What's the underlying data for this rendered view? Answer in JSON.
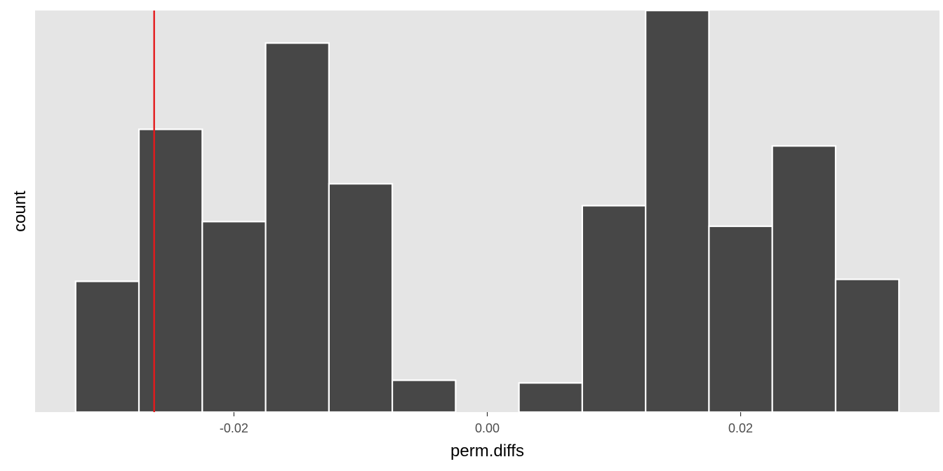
{
  "chart_data": {
    "type": "bar",
    "subtype": "histogram",
    "title": "",
    "xlabel": "perm.diffs",
    "ylabel": "count",
    "bins": [
      {
        "x0": -0.0325,
        "x1": -0.0275,
        "count": 19.7
      },
      {
        "x0": -0.0275,
        "x1": -0.0225,
        "count": 42.6
      },
      {
        "x0": -0.0225,
        "x1": -0.0175,
        "count": 28.7
      },
      {
        "x0": -0.0175,
        "x1": -0.0125,
        "count": 55.6
      },
      {
        "x0": -0.0125,
        "x1": -0.0075,
        "count": 34.4
      },
      {
        "x0": -0.0075,
        "x1": -0.0025,
        "count": 4.8
      },
      {
        "x0": -0.0025,
        "x1": 0.0025,
        "count": 0
      },
      {
        "x0": 0.0025,
        "x1": 0.0075,
        "count": 4.4
      },
      {
        "x0": 0.0075,
        "x1": 0.0125,
        "count": 31.1
      },
      {
        "x0": 0.0125,
        "x1": 0.0175,
        "count": 60.5
      },
      {
        "x0": 0.0175,
        "x1": 0.0225,
        "count": 28.0
      },
      {
        "x0": 0.0225,
        "x1": 0.0275,
        "count": 40.1
      },
      {
        "x0": 0.0275,
        "x1": 0.0325,
        "count": 20.0
      }
    ],
    "xlim": [
      -0.0357,
      0.0357
    ],
    "ylim": [
      0,
      60.5
    ],
    "x_ticks": [
      -0.02,
      0.0,
      0.02
    ],
    "x_tick_labels": [
      "-0.02",
      "0.00",
      "0.02"
    ],
    "y_tick_labels": [],
    "reference_line": {
      "x": -0.0263,
      "color": "#e41a1c"
    },
    "colors": {
      "panel_background": "#e5e5e5",
      "bar_fill": "#474747",
      "bar_outline": "#ffffff"
    },
    "grid": false,
    "legend": "none"
  }
}
